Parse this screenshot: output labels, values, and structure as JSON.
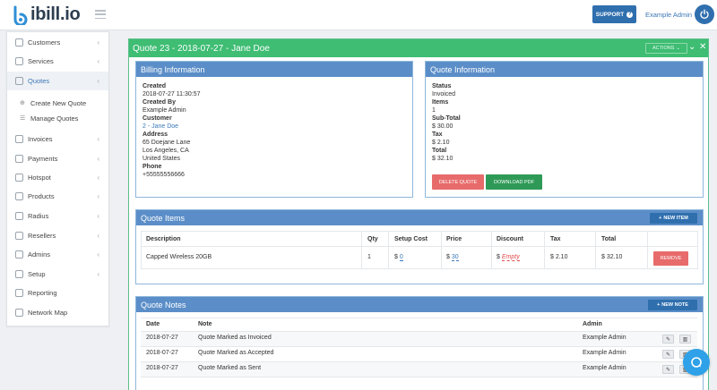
{
  "brand": {
    "name": "ibill.io"
  },
  "topbar": {
    "support_label": "SUPPORT",
    "user_name": "Example Admin"
  },
  "sidebar": {
    "items": [
      {
        "label": "Customers"
      },
      {
        "label": "Services"
      },
      {
        "label": "Quotes"
      },
      {
        "label": "Invoices"
      },
      {
        "label": "Payments"
      },
      {
        "label": "Hotspot"
      },
      {
        "label": "Products"
      },
      {
        "label": "Radius"
      },
      {
        "label": "Resellers"
      },
      {
        "label": "Admins"
      },
      {
        "label": "Setup"
      },
      {
        "label": "Reporting"
      },
      {
        "label": "Network Map"
      }
    ],
    "sub_items": [
      {
        "label": "Create New Quote"
      },
      {
        "label": "Manage Quotes"
      }
    ]
  },
  "quote": {
    "title": "Quote 23 - 2018-07-27 - Jane Doe",
    "actions_label": "ACTIONS"
  },
  "billing": {
    "title": "Billing Information",
    "created_label": "Created",
    "created": "2018-07-27 11:30:57",
    "created_by_label": "Created By",
    "created_by": "Example Admin",
    "customer_label": "Customer",
    "customer": "2 - Jane Doe",
    "address_label": "Address",
    "address1": "65 Doejane Lane",
    "address2": "Los Angeles, CA",
    "address3": "United States",
    "phone_label": "Phone",
    "phone": "+55555556666"
  },
  "quote_info": {
    "title": "Quote Information",
    "status_label": "Status",
    "status": "Invoiced",
    "items_label": "Items",
    "items": "1",
    "subtotal_label": "Sub-Total",
    "subtotal": "$ 30.00",
    "tax_label": "Tax",
    "tax": "$ 2.10",
    "total_label": "Total",
    "total": "$ 32.10",
    "delete_label": "DELETE QUOTE",
    "download_label": "DOWNLOAD PDF"
  },
  "quote_items": {
    "title": "Quote Items",
    "new_label": "NEW ITEM",
    "headers": [
      "Description",
      "Qty",
      "Setup Cost",
      "Price",
      "Discount",
      "Tax",
      "Total"
    ],
    "rows": [
      {
        "description": "Capped Wireless 20GB",
        "qty": "1",
        "setup_prefix": "$",
        "setup": "0",
        "price_prefix": "$",
        "price": "30",
        "discount_prefix": "$",
        "discount": "Empty",
        "tax": "$ 2.10",
        "total": "$ 32.10"
      }
    ],
    "remove_label": "REMOVE"
  },
  "quote_notes": {
    "title": "Quote Notes",
    "new_label": "NEW NOTE",
    "headers": [
      "Date",
      "Note",
      "Admin"
    ],
    "rows": [
      {
        "date": "2018-07-27",
        "note": "Quote Marked as Invoiced",
        "admin": "Example Admin"
      },
      {
        "date": "2018-07-27",
        "note": "Quote Marked as Accepted",
        "admin": "Example Admin"
      },
      {
        "date": "2018-07-27",
        "note": "Quote Marked as Sent",
        "admin": "Example Admin"
      }
    ]
  },
  "colors": {
    "header_green": "#3ebd73",
    "panel_blue": "#5b8ec8",
    "primary_blue": "#2f6fae",
    "danger_red": "#e86b6b",
    "success_green": "#2f9a57"
  }
}
